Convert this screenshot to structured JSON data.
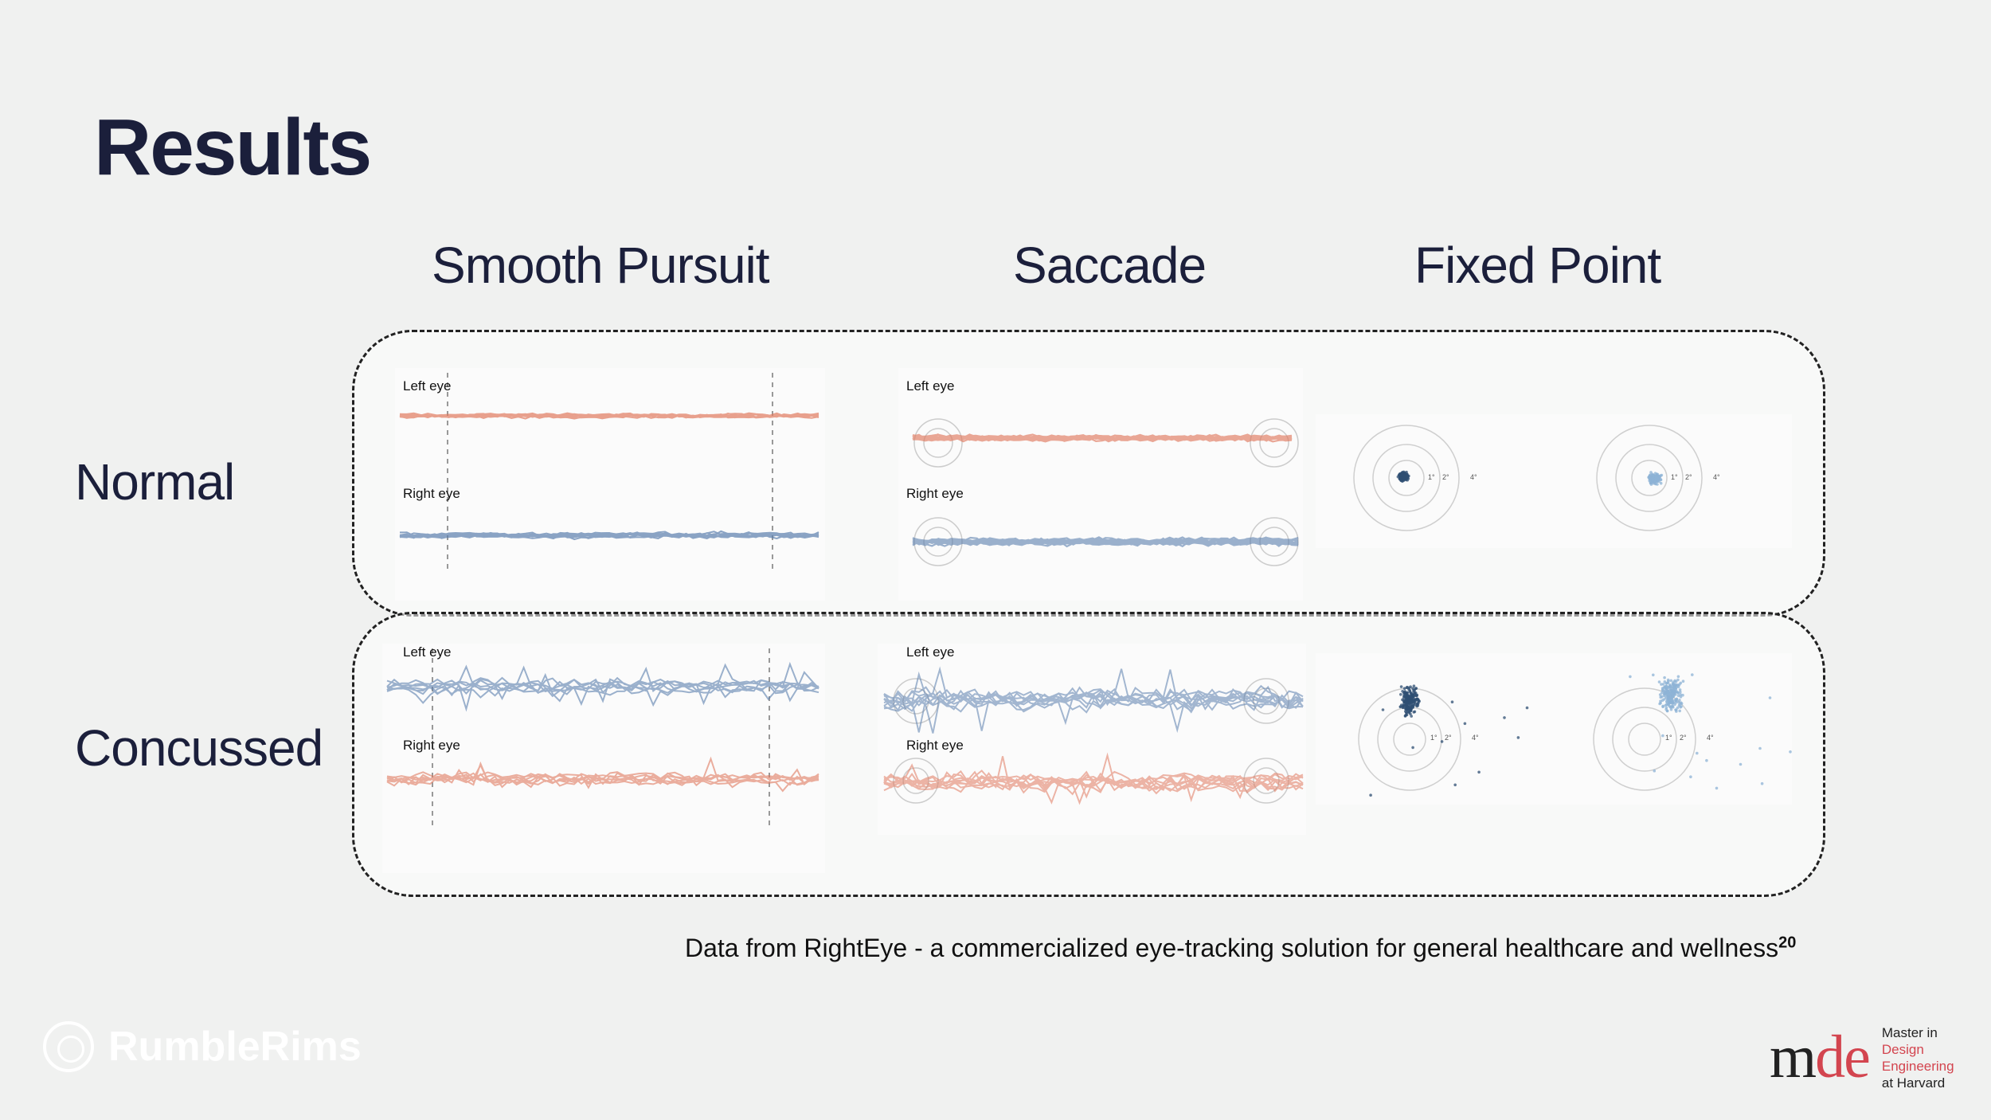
{
  "slide": {
    "title": "Results",
    "columns": [
      "Smooth Pursuit",
      "Saccade",
      "Fixed Point"
    ],
    "rows": [
      "Normal",
      "Concussed"
    ],
    "plot_labels": {
      "left_eye": "Left eye",
      "right_eye": "Right eye"
    },
    "target_labels": {
      "one": "1°",
      "two": "2°",
      "four": "4°"
    },
    "footnote": "Data from RightEye - a commercialized eye-tracking solution for general healthcare and wellness",
    "footnote_ref": "20"
  },
  "branding": {
    "left_logo": "RumbleRims",
    "right_logo_mark_m": "m",
    "right_logo_mark_de": "de",
    "right_logo_line1": "Master in",
    "right_logo_line2": "Design",
    "right_logo_line3": "Engineering",
    "right_logo_line4": "at Harvard"
  },
  "colors": {
    "orange": "#e07a5f",
    "blue": "#5b7fae",
    "dark_blue": "#2f4f73",
    "light_blue": "#8db3d6",
    "text": "#1b1f3b"
  }
}
